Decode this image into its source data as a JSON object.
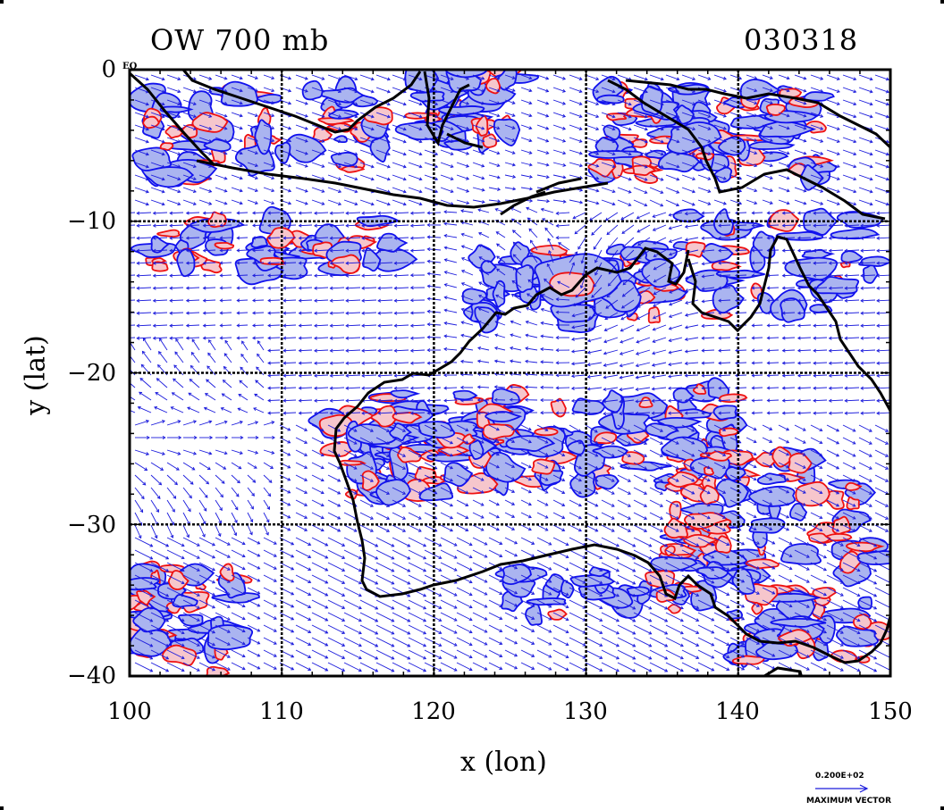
{
  "title": "OW 700 mb",
  "date_label": "030318",
  "equator_tag": "EQ",
  "x_axis": {
    "label": "x (lon)",
    "ticks": [
      "100",
      "110",
      "120",
      "130",
      "140",
      "150"
    ],
    "range": [
      100,
      150
    ]
  },
  "y_axis": {
    "label": "y (lat)",
    "ticks": [
      "0",
      "−10",
      "−20",
      "−30",
      "−40"
    ],
    "range": [
      -40,
      0
    ]
  },
  "reference_vector": {
    "value": "0.200E+02",
    "caption": "MAXIMUM VECTOR"
  },
  "colors": {
    "positive_contour": "#ee1111",
    "positive_fill": "#f6c6cc",
    "negative_contour": "#1111ee",
    "negative_fill": "#aab4f0",
    "wind_vector": "#1a1adc",
    "coastline": "#000000"
  }
}
